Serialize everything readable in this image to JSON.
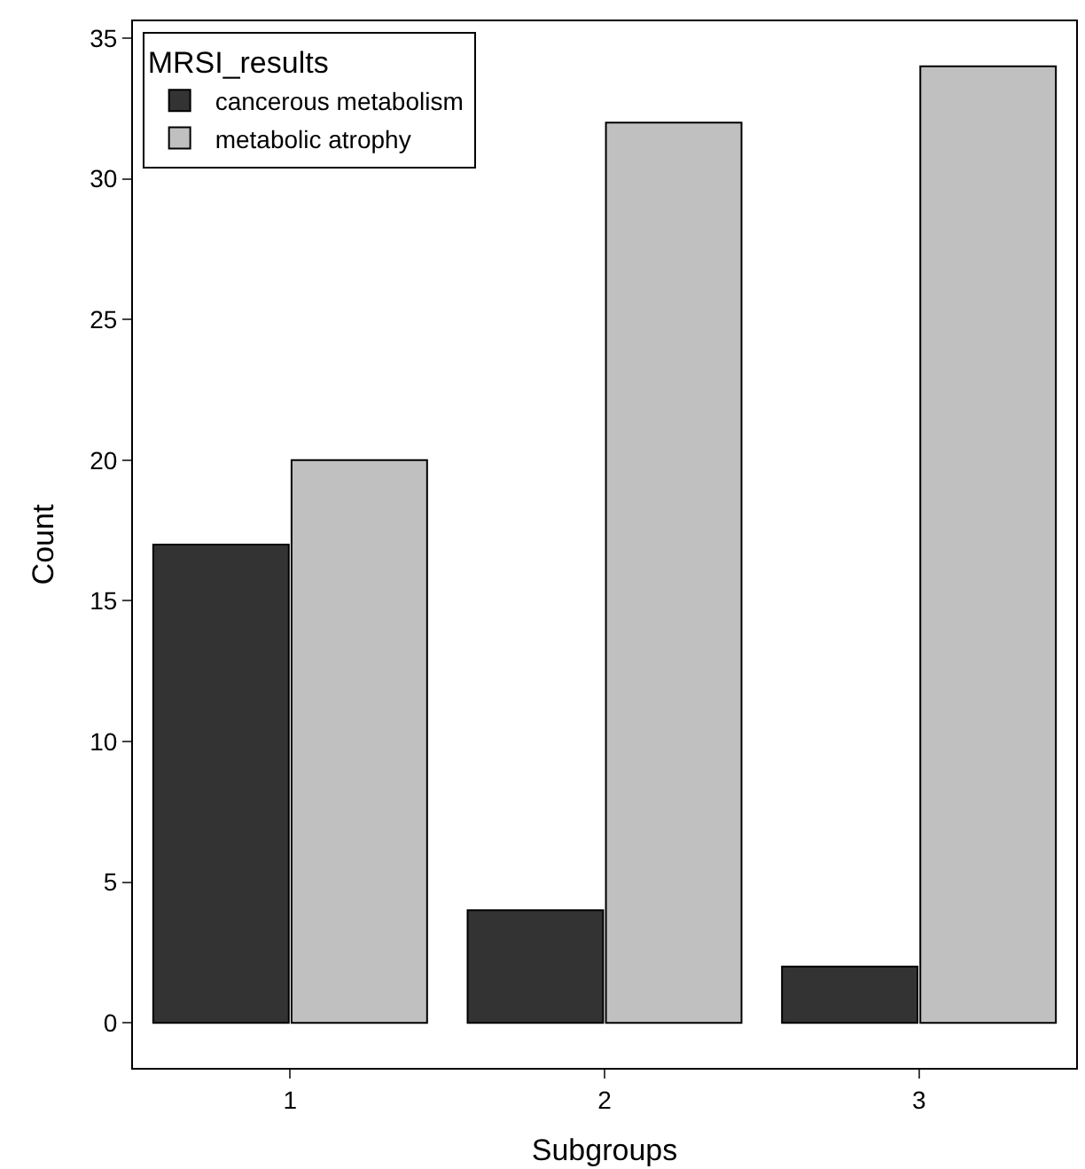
{
  "chart_data": {
    "type": "bar",
    "categories": [
      "1",
      "2",
      "3"
    ],
    "xlabel": "Subgroups",
    "ylabel": "Count",
    "legend_title": "MRSI_results",
    "series": [
      {
        "name": "cancerous metabolism",
        "color": "#333333",
        "values": [
          17,
          4,
          2
        ]
      },
      {
        "name": "metabolic atrophy",
        "color": "#c0c0c0",
        "values": [
          20,
          32,
          34
        ]
      }
    ],
    "ylim": [
      -1.6,
      35.6
    ],
    "yticks": [
      0,
      5,
      10,
      15,
      20,
      25,
      30,
      35
    ],
    "legend": "top left"
  }
}
